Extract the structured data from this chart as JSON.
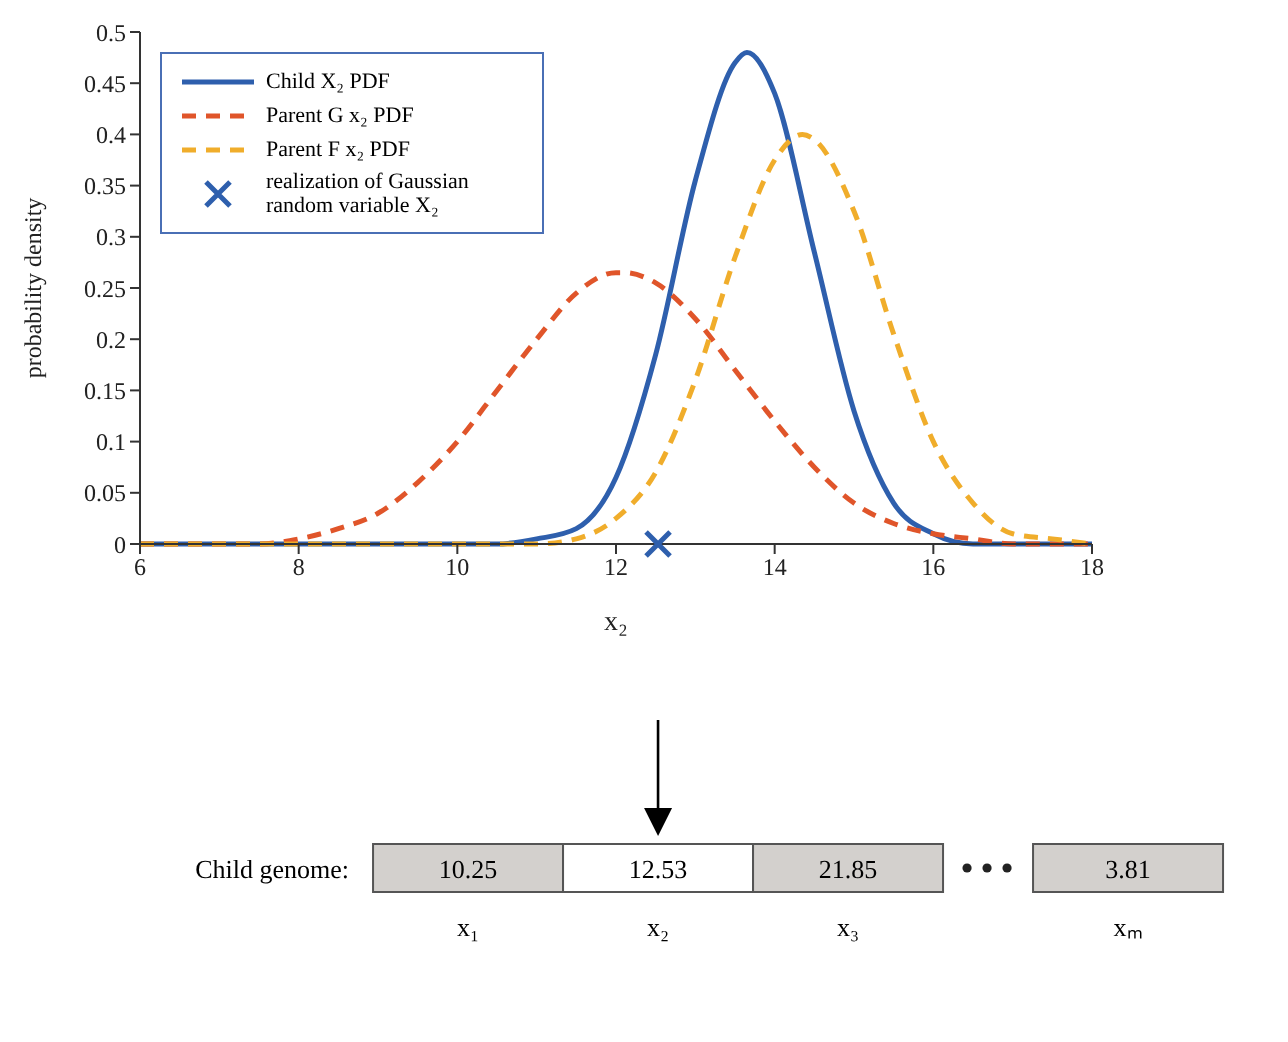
{
  "chart_data": {
    "type": "line",
    "xlabel": "x₂",
    "ylabel": "probability density",
    "xlim": [
      6,
      18
    ],
    "ylim": [
      0,
      0.5
    ],
    "xticks": [
      6,
      8,
      10,
      12,
      14,
      16,
      18
    ],
    "yticks": [
      0,
      0.05,
      0.1,
      0.15,
      0.2,
      0.25,
      0.3,
      0.35,
      0.4,
      0.45,
      0.5
    ],
    "grid": false,
    "legend": "top left",
    "series": [
      {
        "name": "Child X₂ PDF",
        "type": "line",
        "line_style": "solid",
        "marker": "none",
        "color": "#2e5fad",
        "x": [
          6,
          7,
          8,
          9,
          10,
          10.5,
          11,
          11.5,
          12,
          12.5,
          13,
          13.5,
          13.65,
          14,
          14.5,
          15,
          15.5,
          16,
          16.5,
          17,
          18
        ],
        "values": [
          0,
          0,
          0,
          0,
          0,
          0,
          0.005,
          0.015,
          0.065,
          0.185,
          0.355,
          0.47,
          0.48,
          0.44,
          0.285,
          0.13,
          0.04,
          0.01,
          0,
          0,
          0
        ]
      },
      {
        "name": "Parent G x₂ PDF",
        "type": "line",
        "line_style": "dashed",
        "marker": "none",
        "color": "#e0552a",
        "x": [
          6,
          7,
          7.5,
          8,
          8.5,
          9,
          9.5,
          10,
          10.5,
          11,
          11.5,
          12,
          12.1,
          12.5,
          13,
          13.5,
          14,
          14.5,
          15,
          15.5,
          16,
          16.5,
          17,
          18
        ],
        "values": [
          0,
          0,
          0,
          0.005,
          0.015,
          0.03,
          0.06,
          0.1,
          0.15,
          0.2,
          0.245,
          0.265,
          0.265,
          0.255,
          0.22,
          0.17,
          0.12,
          0.075,
          0.04,
          0.02,
          0.01,
          0.005,
          0,
          0
        ]
      },
      {
        "name": "Parent F x₂ PDF",
        "type": "line",
        "line_style": "dashed",
        "marker": "none",
        "color": "#f0ad2b",
        "x": [
          6,
          8,
          10,
          11,
          11.5,
          12,
          12.5,
          13,
          13.5,
          14,
          14.35,
          14.5,
          15,
          15.5,
          16,
          16.5,
          17,
          17.5,
          18
        ],
        "values": [
          0,
          0,
          0,
          0,
          0.005,
          0.025,
          0.07,
          0.16,
          0.28,
          0.375,
          0.4,
          0.395,
          0.325,
          0.205,
          0.1,
          0.04,
          0.01,
          0.005,
          0
        ]
      },
      {
        "name": "realization of Gaussian random variable X₂",
        "type": "scatter",
        "marker": "cross",
        "color": "#2e5fad",
        "x": [
          12.53
        ],
        "values": [
          0
        ]
      }
    ],
    "annotations": [
      "Child genome:",
      "10.25",
      "12.53",
      "21.85",
      "3.81",
      "x₁",
      "x₂",
      "x₃",
      "xₘ"
    ]
  }
}
